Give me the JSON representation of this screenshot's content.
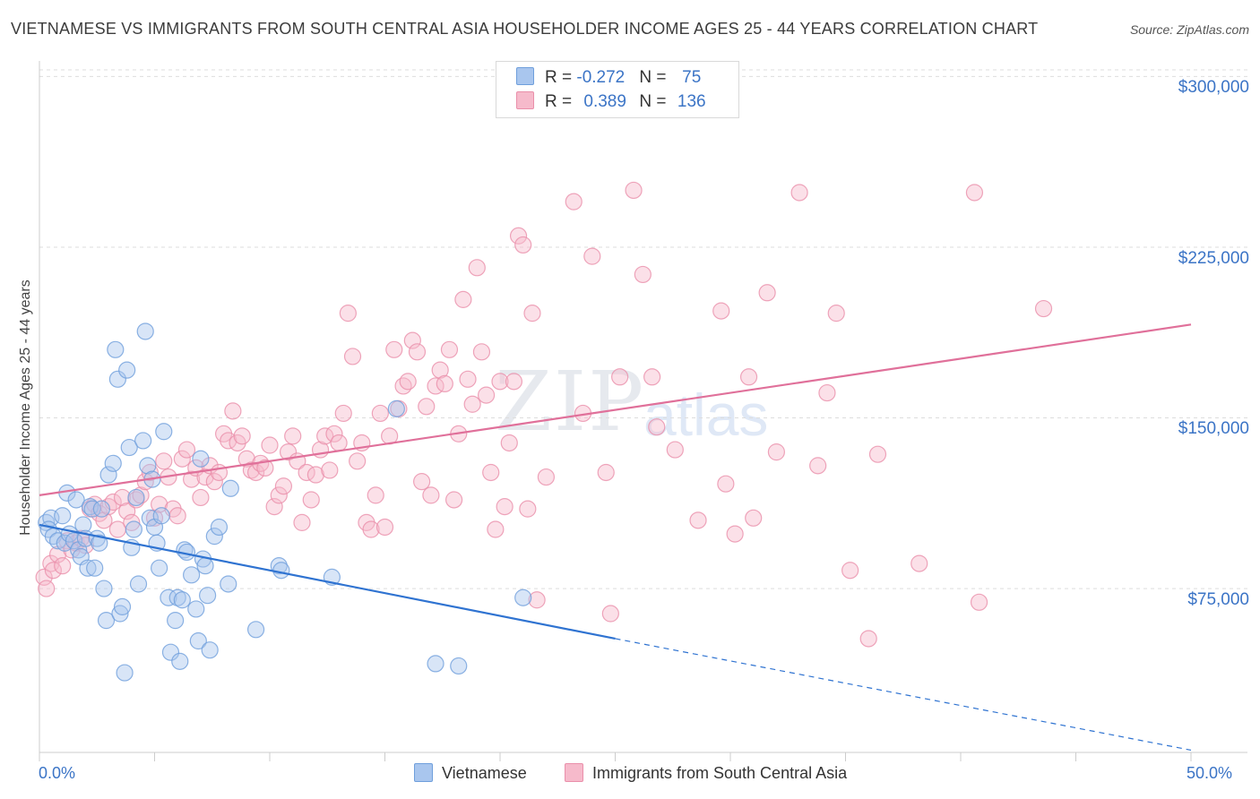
{
  "title": "VIETNAMESE VS IMMIGRANTS FROM SOUTH CENTRAL ASIA HOUSEHOLDER INCOME AGES 25 - 44 YEARS CORRELATION CHART",
  "source": "Source: ZipAtlas.com",
  "watermark": {
    "zip": "ZIP",
    "atlas": "atlas"
  },
  "legend_top": {
    "rows": [
      {
        "r_label": "R = ",
        "r_value": "-0.272",
        "n_label": "N = ",
        "n_value": "75"
      },
      {
        "r_label": "R = ",
        "r_value": "0.389",
        "n_label": "N = ",
        "n_value": "136"
      }
    ]
  },
  "colors": {
    "blue_fill": "#a9c6ee",
    "blue_stroke": "#6f9fdc",
    "blue_line": "#2f73d1",
    "pink_fill": "#f6bacb",
    "pink_stroke": "#ea8faa",
    "pink_line": "#e0709a",
    "grid": "#dddddd",
    "accent_text": "#3b74c6"
  },
  "chart_data": {
    "type": "scatter",
    "title": "VIETNAMESE VS IMMIGRANTS FROM SOUTH CENTRAL ASIA HOUSEHOLDER INCOME AGES 25 - 44 YEARS CORRELATION CHART",
    "xlabel": "",
    "ylabel": "Householder Income Ages 25 - 44 years",
    "xlim": [
      0,
      50
    ],
    "ylim": [
      3000,
      310000
    ],
    "x_tick_labels": [
      "0.0%",
      "50.0%"
    ],
    "y_ticks": [
      75000,
      150000,
      225000,
      300000
    ],
    "y_tick_labels": [
      "$75,000",
      "$150,000",
      "$225,000",
      "$300,000"
    ],
    "grid": "horizontal dashed",
    "legend_placement": "top-center and bottom",
    "series": [
      {
        "name": "Vietnamese",
        "r": -0.272,
        "n": 75,
        "trend": {
          "x": [
            0,
            25
          ],
          "y": [
            103000,
            53000
          ],
          "dashed_to": [
            50,
            4000
          ]
        },
        "points": [
          [
            0.3,
            104000
          ],
          [
            0.5,
            106000
          ],
          [
            0.4,
            101000
          ],
          [
            0.6,
            98000
          ],
          [
            0.8,
            96000
          ],
          [
            1.0,
            107000
          ],
          [
            1.1,
            95000
          ],
          [
            1.2,
            117000
          ],
          [
            1.3,
            99000
          ],
          [
            1.5,
            96000
          ],
          [
            1.6,
            114000
          ],
          [
            1.7,
            92000
          ],
          [
            1.8,
            89000
          ],
          [
            1.9,
            103000
          ],
          [
            2.0,
            97000
          ],
          [
            2.1,
            84000
          ],
          [
            2.2,
            111000
          ],
          [
            2.3,
            110000
          ],
          [
            2.4,
            84000
          ],
          [
            2.5,
            97000
          ],
          [
            2.6,
            95000
          ],
          [
            2.7,
            110000
          ],
          [
            2.8,
            75000
          ],
          [
            2.9,
            61000
          ],
          [
            3.0,
            125000
          ],
          [
            3.2,
            130000
          ],
          [
            3.3,
            180000
          ],
          [
            3.4,
            167000
          ],
          [
            3.5,
            64000
          ],
          [
            3.6,
            67000
          ],
          [
            3.7,
            38000
          ],
          [
            3.8,
            171000
          ],
          [
            3.9,
            137000
          ],
          [
            4.0,
            93000
          ],
          [
            4.1,
            101000
          ],
          [
            4.2,
            115000
          ],
          [
            4.3,
            77000
          ],
          [
            4.5,
            140000
          ],
          [
            4.6,
            188000
          ],
          [
            4.7,
            129000
          ],
          [
            4.8,
            106000
          ],
          [
            4.9,
            123000
          ],
          [
            5.0,
            102000
          ],
          [
            5.1,
            95000
          ],
          [
            5.2,
            84000
          ],
          [
            5.3,
            107000
          ],
          [
            5.4,
            144000
          ],
          [
            5.6,
            71000
          ],
          [
            5.7,
            47000
          ],
          [
            5.9,
            61000
          ],
          [
            6.0,
            71000
          ],
          [
            6.1,
            43000
          ],
          [
            6.2,
            70000
          ],
          [
            6.3,
            92000
          ],
          [
            6.4,
            91000
          ],
          [
            6.6,
            81000
          ],
          [
            6.8,
            66000
          ],
          [
            6.9,
            52000
          ],
          [
            7.0,
            132000
          ],
          [
            7.1,
            88000
          ],
          [
            7.2,
            85000
          ],
          [
            7.3,
            72000
          ],
          [
            7.4,
            48000
          ],
          [
            7.6,
            98000
          ],
          [
            7.8,
            102000
          ],
          [
            8.3,
            119000
          ],
          [
            8.2,
            77000
          ],
          [
            9.4,
            57000
          ],
          [
            10.4,
            85000
          ],
          [
            10.5,
            83000
          ],
          [
            12.7,
            80000
          ],
          [
            15.5,
            154000
          ],
          [
            17.2,
            42000
          ],
          [
            18.2,
            41000
          ],
          [
            21.0,
            71000
          ]
        ]
      },
      {
        "name": "Immigrants from South Central Asia",
        "r": 0.389,
        "n": 136,
        "trend": {
          "x": [
            0,
            50
          ],
          "y": [
            116000,
            191000
          ]
        },
        "points": [
          [
            0.2,
            80000
          ],
          [
            0.3,
            75000
          ],
          [
            0.5,
            86000
          ],
          [
            0.6,
            83000
          ],
          [
            0.8,
            90000
          ],
          [
            1.0,
            85000
          ],
          [
            1.2,
            96000
          ],
          [
            1.4,
            92000
          ],
          [
            1.6,
            95000
          ],
          [
            1.8,
            97000
          ],
          [
            2.0,
            94000
          ],
          [
            2.2,
            110000
          ],
          [
            2.4,
            112000
          ],
          [
            2.6,
            108000
          ],
          [
            2.8,
            105000
          ],
          [
            3.0,
            111000
          ],
          [
            3.2,
            113000
          ],
          [
            3.4,
            101000
          ],
          [
            3.6,
            115000
          ],
          [
            3.8,
            109000
          ],
          [
            4.0,
            104000
          ],
          [
            4.2,
            114000
          ],
          [
            4.4,
            116000
          ],
          [
            4.6,
            122000
          ],
          [
            4.8,
            126000
          ],
          [
            5.0,
            106000
          ],
          [
            5.2,
            112000
          ],
          [
            5.4,
            131000
          ],
          [
            5.6,
            124000
          ],
          [
            5.8,
            110000
          ],
          [
            6.0,
            107000
          ],
          [
            6.2,
            132000
          ],
          [
            6.4,
            136000
          ],
          [
            6.6,
            123000
          ],
          [
            6.8,
            128000
          ],
          [
            7.0,
            115000
          ],
          [
            7.2,
            124000
          ],
          [
            7.4,
            129000
          ],
          [
            7.6,
            122000
          ],
          [
            7.8,
            126000
          ],
          [
            8.0,
            143000
          ],
          [
            8.2,
            140000
          ],
          [
            8.4,
            153000
          ],
          [
            8.6,
            139000
          ],
          [
            8.8,
            142000
          ],
          [
            9.0,
            132000
          ],
          [
            9.2,
            127000
          ],
          [
            9.4,
            126000
          ],
          [
            9.6,
            130000
          ],
          [
            9.8,
            128000
          ],
          [
            10.0,
            138000
          ],
          [
            10.2,
            111000
          ],
          [
            10.4,
            116000
          ],
          [
            10.6,
            120000
          ],
          [
            10.8,
            135000
          ],
          [
            11.0,
            142000
          ],
          [
            11.2,
            131000
          ],
          [
            11.4,
            104000
          ],
          [
            11.6,
            126000
          ],
          [
            11.8,
            114000
          ],
          [
            12.0,
            125000
          ],
          [
            12.2,
            136000
          ],
          [
            12.4,
            142000
          ],
          [
            12.6,
            127000
          ],
          [
            12.8,
            143000
          ],
          [
            13.0,
            139000
          ],
          [
            13.2,
            152000
          ],
          [
            13.4,
            196000
          ],
          [
            13.6,
            177000
          ],
          [
            13.8,
            131000
          ],
          [
            14.0,
            139000
          ],
          [
            14.2,
            104000
          ],
          [
            14.4,
            101000
          ],
          [
            14.6,
            116000
          ],
          [
            14.8,
            152000
          ],
          [
            15.0,
            102000
          ],
          [
            15.2,
            142000
          ],
          [
            15.4,
            180000
          ],
          [
            15.6,
            154000
          ],
          [
            15.8,
            164000
          ],
          [
            16.0,
            166000
          ],
          [
            16.2,
            184000
          ],
          [
            16.4,
            179000
          ],
          [
            16.6,
            122000
          ],
          [
            16.8,
            155000
          ],
          [
            17.0,
            116000
          ],
          [
            17.2,
            164000
          ],
          [
            17.4,
            171000
          ],
          [
            17.6,
            165000
          ],
          [
            17.8,
            180000
          ],
          [
            18.0,
            114000
          ],
          [
            18.2,
            143000
          ],
          [
            18.4,
            202000
          ],
          [
            18.6,
            167000
          ],
          [
            18.8,
            156000
          ],
          [
            19.0,
            216000
          ],
          [
            19.2,
            179000
          ],
          [
            19.4,
            160000
          ],
          [
            19.6,
            126000
          ],
          [
            19.8,
            101000
          ],
          [
            20.0,
            166000
          ],
          [
            20.2,
            111000
          ],
          [
            20.4,
            139000
          ],
          [
            20.6,
            166000
          ],
          [
            20.8,
            230000
          ],
          [
            21.0,
            226000
          ],
          [
            21.2,
            110000
          ],
          [
            21.4,
            196000
          ],
          [
            21.6,
            70000
          ],
          [
            22.0,
            124000
          ],
          [
            23.2,
            245000
          ],
          [
            23.6,
            152000
          ],
          [
            24.0,
            221000
          ],
          [
            24.6,
            126000
          ],
          [
            24.8,
            64000
          ],
          [
            25.2,
            168000
          ],
          [
            25.8,
            250000
          ],
          [
            26.2,
            213000
          ],
          [
            26.6,
            168000
          ],
          [
            26.8,
            146000
          ],
          [
            27.6,
            136000
          ],
          [
            28.6,
            105000
          ],
          [
            29.6,
            197000
          ],
          [
            29.8,
            121000
          ],
          [
            30.2,
            99000
          ],
          [
            30.8,
            168000
          ],
          [
            31.0,
            106000
          ],
          [
            31.6,
            205000
          ],
          [
            32.0,
            135000
          ],
          [
            33.0,
            249000
          ],
          [
            33.8,
            129000
          ],
          [
            34.2,
            161000
          ],
          [
            34.6,
            196000
          ],
          [
            35.2,
            83000
          ],
          [
            36.0,
            53000
          ],
          [
            36.4,
            134000
          ],
          [
            38.2,
            86000
          ],
          [
            40.6,
            249000
          ],
          [
            40.8,
            69000
          ],
          [
            43.6,
            198000
          ]
        ]
      }
    ]
  }
}
